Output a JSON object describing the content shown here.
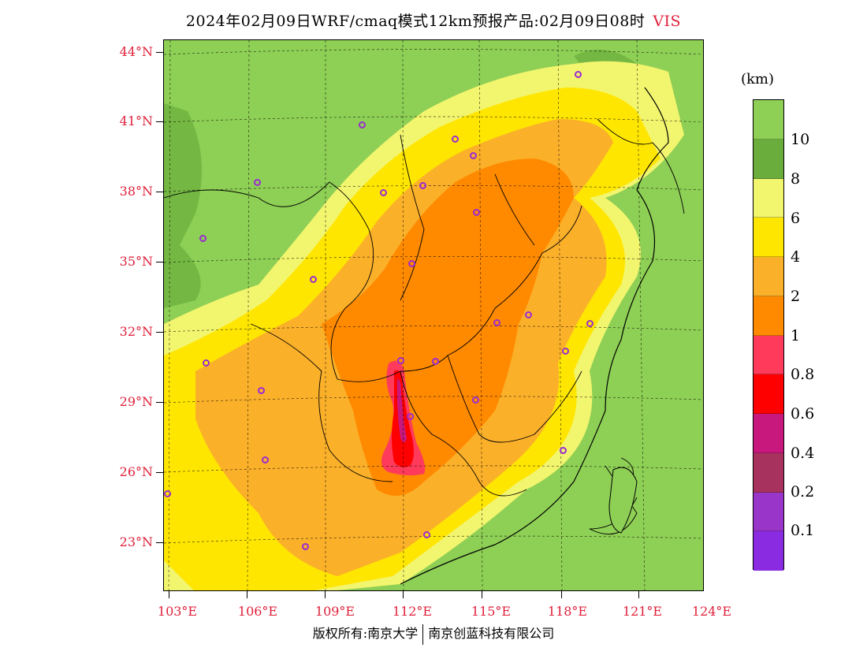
{
  "title": {
    "main": "2024年02月09日WRF/cmaq模式12km预报产品:02月09日08时",
    "variable": "VIS"
  },
  "latitude_labels": [
    "44°N",
    "41°N",
    "38°N",
    "35°N",
    "32°N",
    "29°N",
    "26°N",
    "23°N"
  ],
  "longitude_labels": [
    "103°E",
    "106°E",
    "109°E",
    "112°E",
    "115°E",
    "118°E",
    "121°E",
    "124°E"
  ],
  "colorbar": {
    "unit": "(km)",
    "labels": [
      "10",
      "8",
      "6",
      "4",
      "2",
      "1",
      "0.8",
      "0.6",
      "0.4",
      "0.2",
      "0.1"
    ],
    "colors": [
      "#8ecf55",
      "#6aad3c",
      "#f2f56e",
      "#ffe600",
      "#fbb02a",
      "#ff8a00",
      "#ff3a5a",
      "#ff0000",
      "#c8187e",
      "#a8325e",
      "#9a35c9",
      "#8a2be2"
    ]
  },
  "footer": {
    "left": "版权所有:南京大学",
    "right": "南京创蓝科技有限公司"
  }
}
